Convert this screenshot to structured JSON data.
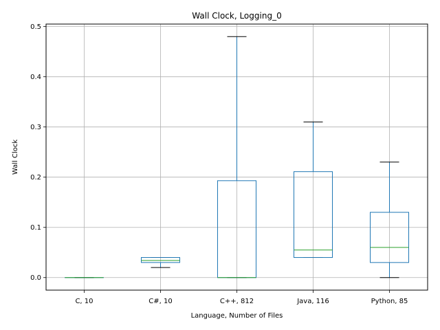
{
  "chart_data": {
    "type": "box",
    "title": "Wall Clock, Logging_0",
    "xlabel": "Language, Number of Files",
    "ylabel": "Wall Clock",
    "ylim": [
      -0.025,
      0.505
    ],
    "yticks": [
      0.0,
      0.1,
      0.2,
      0.3,
      0.4,
      0.5
    ],
    "ytick_labels": [
      "0.0",
      "0.1",
      "0.2",
      "0.3",
      "0.4",
      "0.5"
    ],
    "grid": true,
    "categories": [
      "C, 10",
      "C#, 10",
      "C++, 812",
      "Java, 116",
      "Python, 85"
    ],
    "boxes": [
      {
        "whisker_low": 0.0,
        "q1": 0.0,
        "median": 0.0,
        "q3": 0.0,
        "whisker_high": 0.0
      },
      {
        "whisker_low": 0.02,
        "q1": 0.03,
        "median": 0.034,
        "q3": 0.04,
        "whisker_high": 0.04
      },
      {
        "whisker_low": 0.0,
        "q1": 0.0,
        "median": 0.0,
        "q3": 0.193,
        "whisker_high": 0.48
      },
      {
        "whisker_low": 0.04,
        "q1": 0.04,
        "median": 0.055,
        "q3": 0.211,
        "whisker_high": 0.31
      },
      {
        "whisker_low": 0.0,
        "q1": 0.03,
        "median": 0.06,
        "q3": 0.13,
        "whisker_high": 0.23
      }
    ],
    "colors": {
      "box": "#1f77b4",
      "median": "#2ca02c",
      "cap": "#000000",
      "grid": "#b0b0b0"
    }
  }
}
